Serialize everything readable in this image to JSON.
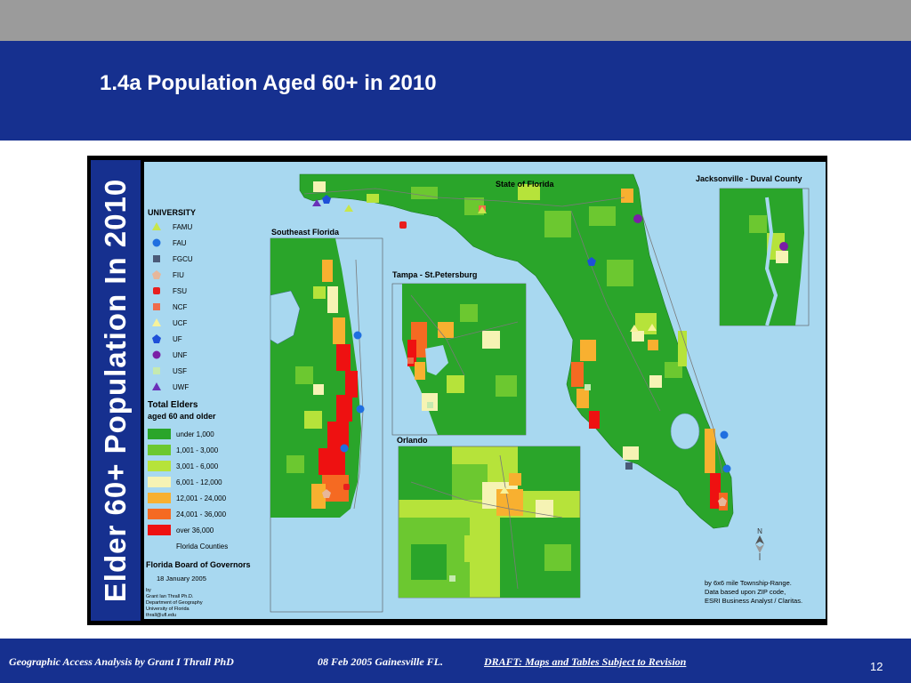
{
  "slide": {
    "title": "1.4a Population Aged 60+ in 2010",
    "side_title": "Elder 60+ Population In 2010",
    "page_number": "12"
  },
  "footer": {
    "author": "Geographic Access Analysis by Grant I Thrall PhD",
    "date_place": "08 Feb 2005  Gainesville FL.",
    "draft": "DRAFT:  Maps and Tables Subject to Revision"
  },
  "map": {
    "insets": {
      "state": "State of Florida",
      "jacksonville": "Jacksonville - Duval County",
      "southeast": "Southeast Florida",
      "tampa": "Tampa - St.Petersburg",
      "orlando": "Orlando"
    },
    "university_legend": {
      "title": "UNIVERSITY",
      "items": [
        {
          "label": "FAMU",
          "shape": "triangle",
          "color": "#c8e64a"
        },
        {
          "label": "FAU",
          "shape": "circle",
          "color": "#1f6fe0"
        },
        {
          "label": "FGCU",
          "shape": "square",
          "color": "#4a5a78"
        },
        {
          "label": "FIU",
          "shape": "pentagon",
          "color": "#e7b79a"
        },
        {
          "label": "FSU",
          "shape": "roundsquare",
          "color": "#e81e1e"
        },
        {
          "label": "NCF",
          "shape": "square",
          "color": "#ef6b4a"
        },
        {
          "label": "UCF",
          "shape": "triangle",
          "color": "#f7f29a"
        },
        {
          "label": "UF",
          "shape": "pentagon",
          "color": "#1e4fd8"
        },
        {
          "label": "UNF",
          "shape": "circle",
          "color": "#7a1fa6"
        },
        {
          "label": "USF",
          "shape": "square",
          "color": "#c6eab0"
        },
        {
          "label": "UWF",
          "shape": "triangle",
          "color": "#6a2fb8"
        }
      ]
    },
    "population_legend": {
      "title": "Total Elders",
      "subtitle": "aged 60 and older",
      "items": [
        {
          "label": "under 1,000",
          "color": "#2aa52a"
        },
        {
          "label": "1,001 - 3,000",
          "color": "#6cc830"
        },
        {
          "label": "3,001 - 6,000",
          "color": "#b6e33a"
        },
        {
          "label": "6,001 - 12,000",
          "color": "#f6f3b4"
        },
        {
          "label": "12,001 - 24,000",
          "color": "#f8b030"
        },
        {
          "label": "24,001 - 36,000",
          "color": "#f56a22"
        },
        {
          "label": "over 36,000",
          "color": "#ee1111"
        },
        {
          "label": "Florida Counties",
          "color": "#a8d8f0"
        }
      ]
    },
    "org": "Florida Board of Governors",
    "credit": {
      "date": "18 January 2005",
      "lines": [
        "by",
        "Grant Ian Thrall Ph.D.",
        "Department of Geography",
        "University of Florida",
        "thrall@ufl.edu"
      ]
    },
    "source_note": [
      "by 6x6 mile Township-Range.",
      "Data based upon ZIP code,",
      "ESRI Business Analyst / Claritas."
    ],
    "colors": {
      "water": "#a8d8f0",
      "land": "#2aa52a",
      "frame": "#000000",
      "header": "#16308f"
    }
  }
}
